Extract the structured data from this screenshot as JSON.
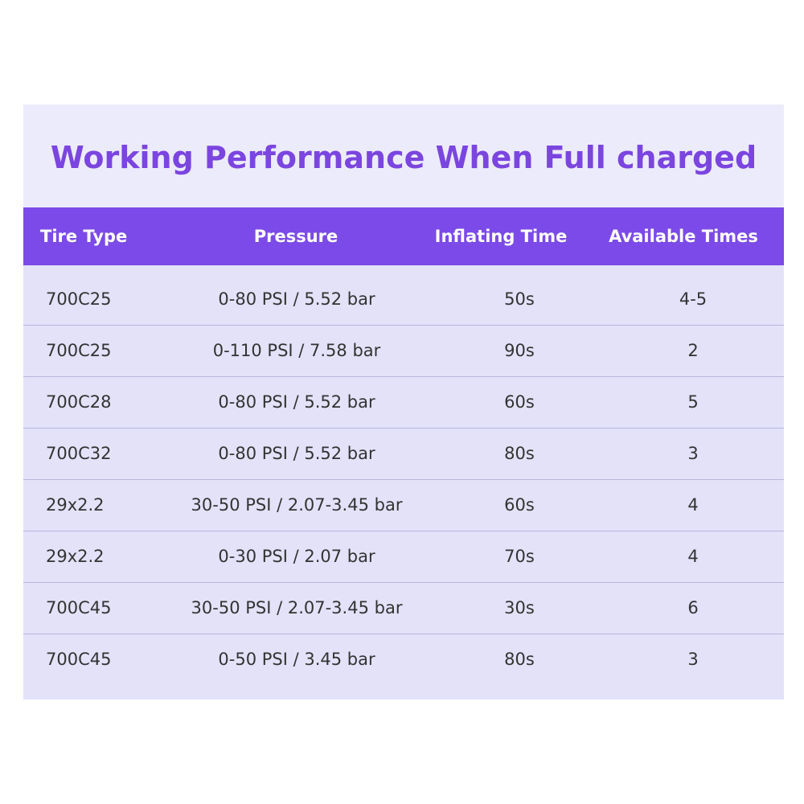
{
  "title": "Working Performance When Full charged",
  "table": {
    "header": [
      "Tire Type",
      "Pressure",
      "Inflating Time",
      "Available Times"
    ],
    "rows": [
      [
        "700C25",
        "0-80 PSI / 5.52 bar",
        "50s",
        "4-5"
      ],
      [
        "700C25",
        "0-110 PSI / 7.58 bar",
        "90s",
        "2"
      ],
      [
        "700C28",
        "0-80 PSI / 5.52 bar",
        "60s",
        "5"
      ],
      [
        "700C32",
        "0-80 PSI / 5.52 bar",
        "80s",
        "3"
      ],
      [
        "29x2.2",
        "30-50 PSI / 2.07-3.45 bar",
        "60s",
        "4"
      ],
      [
        "29x2.2",
        "0-30 PSI / 2.07 bar",
        "70s",
        "4"
      ],
      [
        "700C45",
        "30-50 PSI / 2.07-3.45 bar",
        "30s",
        "6"
      ],
      [
        "700C45",
        "0-50 PSI / 3.45 bar",
        "80s",
        "3"
      ]
    ]
  }
}
